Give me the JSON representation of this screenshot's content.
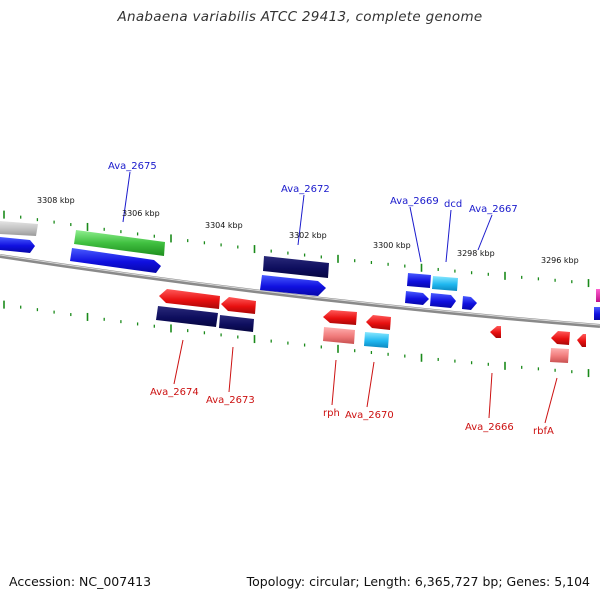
{
  "title": "Anabaena variabilis ATCC 29413, complete genome",
  "footer": {
    "accession": "Accession: NC_007413",
    "summary": "Topology: circular; Length: 6,365,727 bp; Genes: 5,104"
  },
  "colors": {
    "background": "#ffffff",
    "backbone": "#8a8a8a",
    "tick": "#1a8a1a",
    "forward_label": "#1a1acc",
    "reverse_label": "#cc1111",
    "tick_label": "#111111"
  },
  "ruler": {
    "unit": "kbp",
    "labels": [
      "3308 kbp",
      "3306 kbp",
      "3304 kbp",
      "3302 kbp",
      "3300 kbp",
      "3298 kbp",
      "3296 kbp"
    ]
  },
  "genes": {
    "forward": [
      {
        "label": "Ava_2675",
        "color": "green"
      },
      {
        "label": "Ava_2672",
        "color": "navy"
      },
      {
        "label": "Ava_2669",
        "color": "blue"
      },
      {
        "label": "dcd",
        "color": "cyan"
      },
      {
        "label": "Ava_2667",
        "color": "blue"
      }
    ],
    "reverse": [
      {
        "label": "Ava_2674",
        "color": "red"
      },
      {
        "label": "Ava_2673",
        "color": "red"
      },
      {
        "label": "rph",
        "color": "red"
      },
      {
        "label": "Ava_2670",
        "color": "red"
      },
      {
        "label": "Ava_2666",
        "color": "red"
      },
      {
        "label": "rbfA",
        "color": "red"
      }
    ]
  }
}
